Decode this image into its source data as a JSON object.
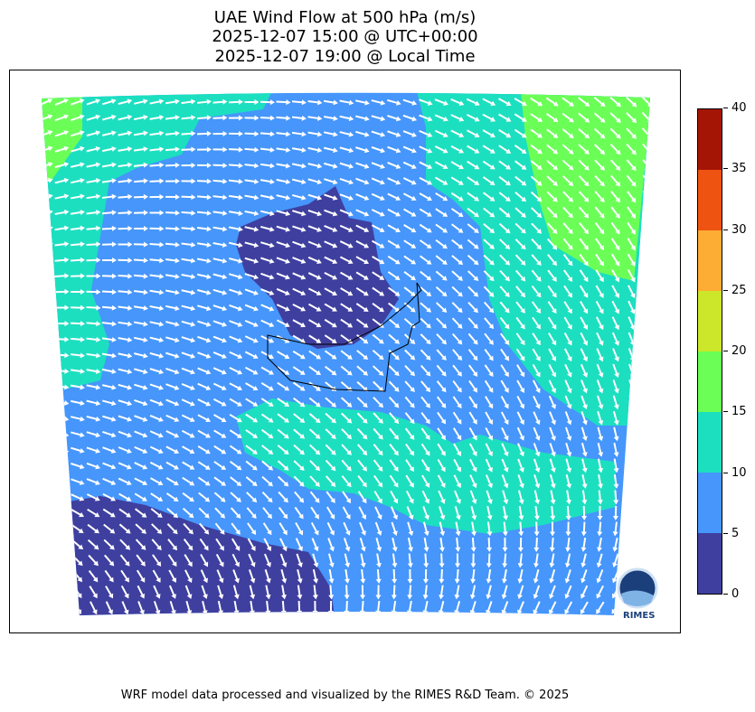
{
  "title": {
    "line1": "UAE Wind Flow at 500 hPa (m/s)",
    "line2": "2025-12-07 15:00 @ UTC+00:00",
    "line3": "2025-12-07 19:00 @ Local Time"
  },
  "colorbar": {
    "ticks": [
      "0",
      "5",
      "10",
      "15",
      "20",
      "25",
      "30",
      "35",
      "40"
    ],
    "colors": [
      "#3f3f9f",
      "#4696fb",
      "#1cdfc0",
      "#6bfe57",
      "#cce629",
      "#fdac34",
      "#ef5312",
      "#a51505"
    ]
  },
  "map": {
    "colors": {
      "dark": "#3f3f9f",
      "blue": "#4696fb",
      "teal": "#1cdfc0",
      "green": "#6bfe57",
      "arrow": "#ffffff",
      "border": "#000000"
    }
  },
  "logo": {
    "text": "RIMES"
  },
  "footer": "WRF model data processed and visualized by the RIMES R&D Team. © 2025"
}
